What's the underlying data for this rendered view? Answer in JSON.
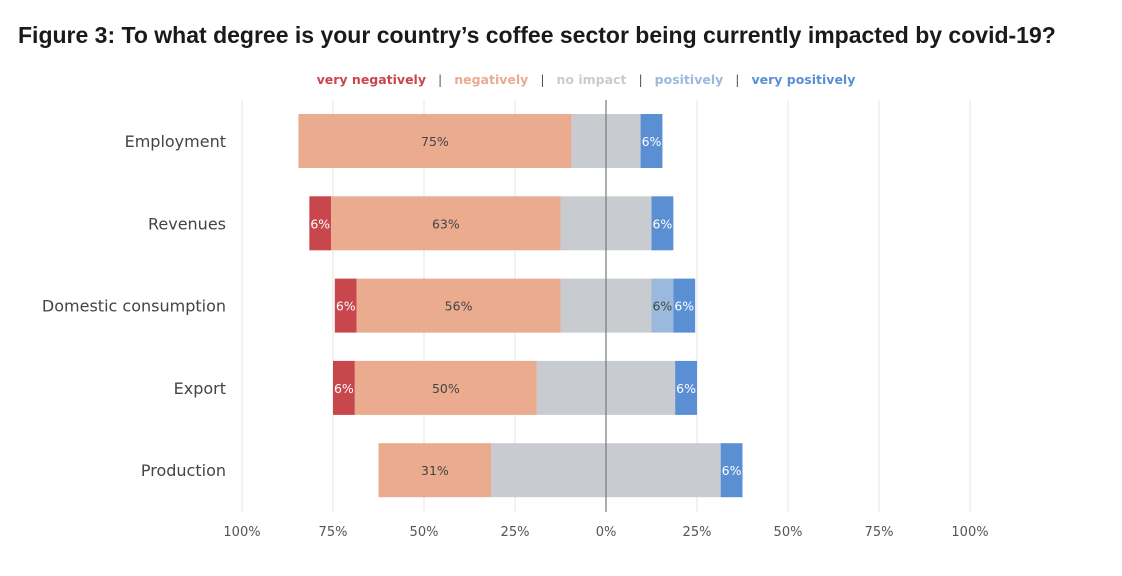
{
  "title": "Figure 3: To what degree is your country’s coffee sector being currently impacted by covid-19?",
  "legend_separator": "|",
  "colors": {
    "very_negatively": "#c8474c",
    "negatively": "#eaab8e",
    "no_impact": "#c8ccd0",
    "positively": "#9bb9dc",
    "very_positively": "#5b8fd4"
  },
  "chart_data": {
    "type": "bar",
    "orientation": "horizontal",
    "stacked": "diverging",
    "title": "Figure 3: To what degree is your country’s coffee sector being currently impacted by covid-19?",
    "categories": [
      "Employment",
      "Revenues",
      "Domestic consumption",
      "Export",
      "Production"
    ],
    "series": [
      {
        "name": "very negatively",
        "key": "very_negatively",
        "values": [
          0,
          6,
          6,
          6,
          0
        ],
        "labels": [
          "",
          "6%",
          "6%",
          "6%",
          ""
        ]
      },
      {
        "name": "negatively",
        "key": "negatively",
        "values": [
          75,
          63,
          56,
          50,
          31
        ],
        "labels": [
          "75%",
          "63%",
          "56%",
          "50%",
          "31%"
        ]
      },
      {
        "name": "no impact",
        "key": "no_impact",
        "values": [
          19,
          25,
          25,
          38,
          63
        ],
        "labels": [
          "",
          "",
          "",
          "",
          ""
        ]
      },
      {
        "name": "positively",
        "key": "positively",
        "values": [
          0,
          0,
          6,
          0,
          0
        ],
        "labels": [
          "",
          "",
          "6%",
          "",
          ""
        ]
      },
      {
        "name": "very positively",
        "key": "very_positively",
        "values": [
          6,
          6,
          6,
          6,
          6
        ],
        "labels": [
          "6%",
          "6%",
          "6%",
          "6%",
          "6%"
        ]
      }
    ],
    "xlim": [
      -100,
      100
    ],
    "xticks": [
      -100,
      -75,
      -50,
      -25,
      0,
      25,
      50,
      75,
      100
    ],
    "xtick_labels": [
      "100%",
      "75%",
      "50%",
      "25%",
      "0%",
      "25%",
      "50%",
      "75%",
      "100%"
    ],
    "grid": true,
    "legend_position": "top"
  }
}
